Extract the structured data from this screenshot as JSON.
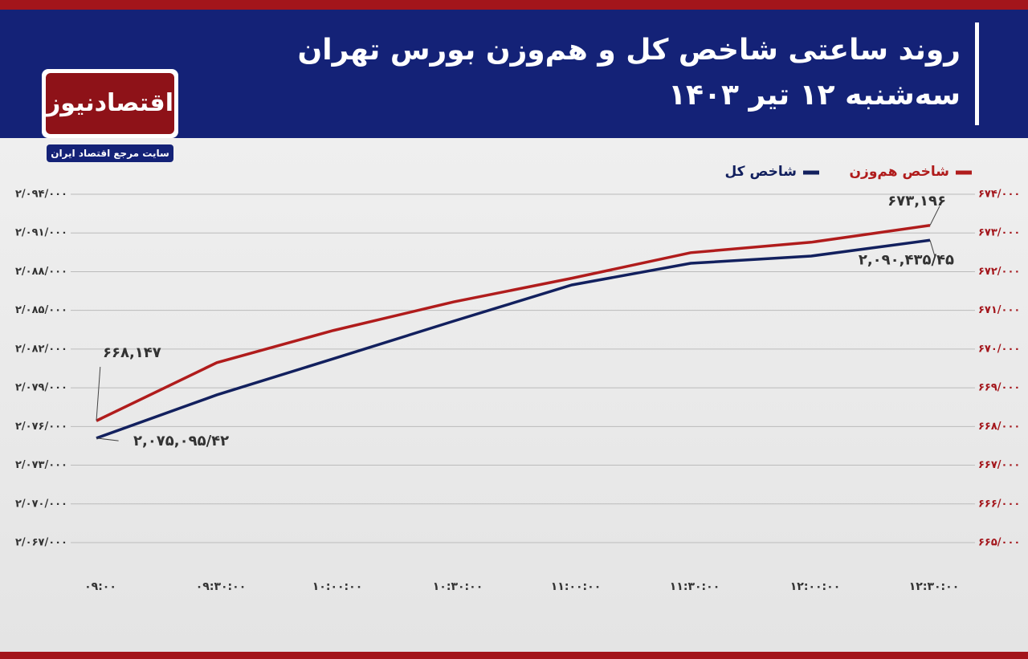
{
  "logo": {
    "name": "اقتصادنیوز",
    "tagline": "سایت مرجع اقتصاد ایران"
  },
  "chart_data": {
    "type": "line",
    "title": "روند ساعتی شاخص کل و هم‌وزن بورس تهران",
    "subtitle": "سه‌شنبه ۱۲ تیر ۱۴۰۳",
    "categories": [
      "۰۹:۰۰",
      "۰۹:۳۰:۰۰",
      "۱۰:۰۰:۰۰",
      "۱۰:۳۰:۰۰",
      "۱۱:۰۰:۰۰",
      "۱۱:۳۰:۰۰",
      "۱۲:۰۰:۰۰",
      "۱۲:۳۰:۰۰"
    ],
    "series": [
      {
        "name": "شاخص هم‌وزن",
        "color": "#b01c1c",
        "axis": "y2",
        "values": [
          668147,
          669650,
          670480,
          671220,
          671830,
          672490,
          672760,
          673196
        ],
        "value_labels": [
          "۶۶۸,۱۴۷",
          null,
          null,
          null,
          null,
          null,
          null,
          "۶۷۳,۱۹۶"
        ]
      },
      {
        "name": "شاخص کل",
        "color": "#12205e",
        "values": [
          2075095.42,
          2078450,
          2081250,
          2084170,
          2086970,
          2088650,
          2089210,
          2090435.45
        ],
        "value_labels": [
          "۲,۰۷۵,۰۹۵/۴۲",
          null,
          null,
          null,
          null,
          null,
          null,
          "۲,۰۹۰,۴۳۵/۴۵"
        ]
      }
    ],
    "ylim": [
      2067000,
      2094000
    ],
    "yticks": [
      {
        "value": 2067000,
        "label": "۲/۰۶۷/۰۰۰"
      },
      {
        "value": 2070000,
        "label": "۲/۰۷۰/۰۰۰"
      },
      {
        "value": 2073000,
        "label": "۲/۰۷۳/۰۰۰"
      },
      {
        "value": 2076000,
        "label": "۲/۰۷۶/۰۰۰"
      },
      {
        "value": 2079000,
        "label": "۲/۰۷۹/۰۰۰"
      },
      {
        "value": 2082000,
        "label": "۲/۰۸۲/۰۰۰"
      },
      {
        "value": 2085000,
        "label": "۲/۰۸۵/۰۰۰"
      },
      {
        "value": 2088000,
        "label": "۲/۰۸۸/۰۰۰"
      },
      {
        "value": 2091000,
        "label": "۲/۰۹۱/۰۰۰"
      },
      {
        "value": 2094000,
        "label": "۲/۰۹۴/۰۰۰"
      }
    ],
    "y2lim": [
      665000,
      674000
    ],
    "y2ticks": [
      {
        "value": 665000,
        "label": "۶۶۵/۰۰۰"
      },
      {
        "value": 666000,
        "label": "۶۶۶/۰۰۰"
      },
      {
        "value": 667000,
        "label": "۶۶۷/۰۰۰"
      },
      {
        "value": 668000,
        "label": "۶۶۸/۰۰۰"
      },
      {
        "value": 669000,
        "label": "۶۶۹/۰۰۰"
      },
      {
        "value": 670000,
        "label": "۶۷۰/۰۰۰"
      },
      {
        "value": 671000,
        "label": "۶۷۱/۰۰۰"
      },
      {
        "value": 672000,
        "label": "۶۷۲/۰۰۰"
      },
      {
        "value": 673000,
        "label": "۶۷۳/۰۰۰"
      },
      {
        "value": 674000,
        "label": "۶۷۴/۰۰۰"
      }
    ],
    "grid": true
  }
}
